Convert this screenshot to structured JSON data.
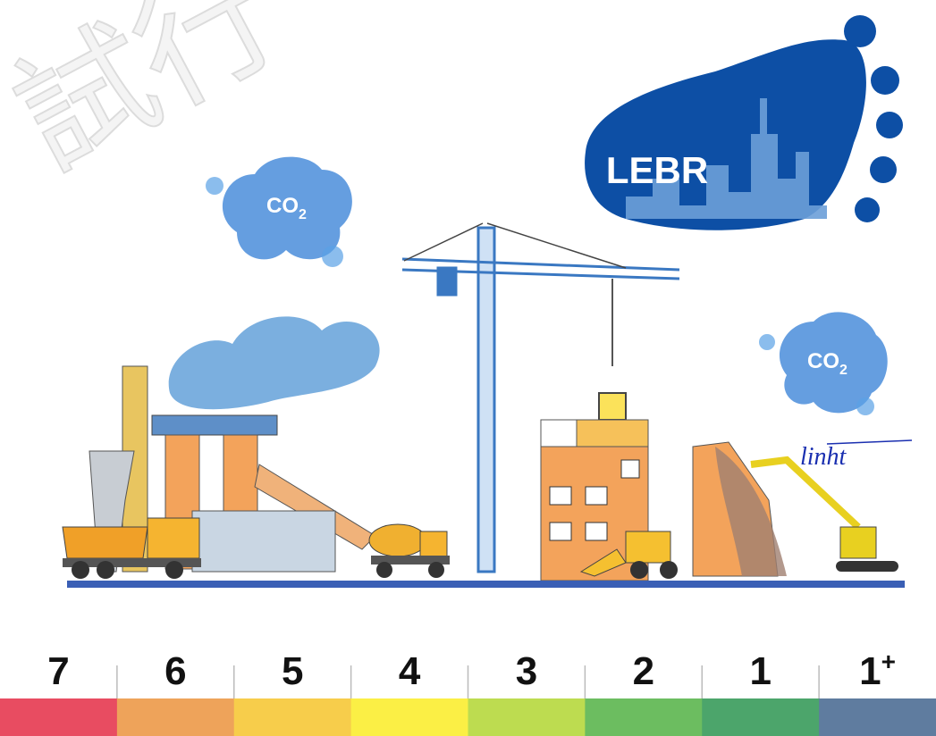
{
  "watermark": "試行",
  "logo": {
    "text": "LEBR"
  },
  "clouds": [
    {
      "text": "CO",
      "sub": "2"
    },
    {
      "text": "CO",
      "sub": "2"
    }
  ],
  "signature": "linht",
  "scale": [
    {
      "label": "7",
      "color": "#e84c61"
    },
    {
      "label": "6",
      "color": "#eea35a"
    },
    {
      "label": "5",
      "color": "#f7cd4b"
    },
    {
      "label": "4",
      "color": "#fbef45"
    },
    {
      "label": "3",
      "color": "#bddc50"
    },
    {
      "label": "2",
      "color": "#6cbd60"
    },
    {
      "label": "1",
      "color": "#4ca56b"
    },
    {
      "label": "1",
      "sup": "+",
      "color": "#5f7c9f"
    }
  ]
}
